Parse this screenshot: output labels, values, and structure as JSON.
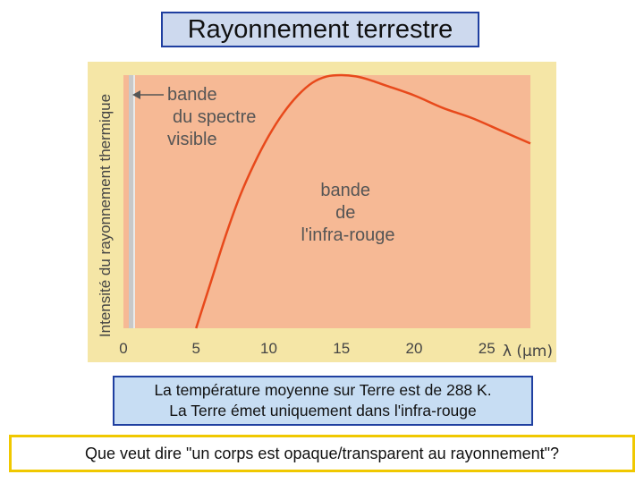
{
  "title": "Rayonnement terrestre",
  "info": {
    "line1": "La température moyenne sur Terre est de 288 K.",
    "line2": "La Terre émet uniquement dans l'infra-rouge"
  },
  "question": "Que veut dire \"un corps est opaque/transparent au rayonnement\"?",
  "chart_data": {
    "type": "line",
    "title": "",
    "xlabel": "λ (µm)",
    "ylabel": "Intensité du rayonnement thermique",
    "xlim": [
      0,
      28
    ],
    "ylim": [
      0,
      1
    ],
    "x_ticks": [
      0,
      5,
      10,
      15,
      20,
      25
    ],
    "series": [
      {
        "x": [
          5,
          6,
          7,
          8,
          9,
          10,
          11,
          12,
          13,
          14,
          15,
          16,
          17,
          18,
          20,
          22,
          24,
          26,
          28
        ],
        "values": [
          0.0,
          0.18,
          0.36,
          0.52,
          0.65,
          0.76,
          0.85,
          0.92,
          0.97,
          0.995,
          1.0,
          0.995,
          0.98,
          0.96,
          0.92,
          0.87,
          0.83,
          0.78,
          0.73
        ]
      }
    ],
    "annotations": {
      "visible_band": [
        "bande",
        "du spectre",
        "visible"
      ],
      "ir_band": [
        "bande",
        "de",
        "l'infra-rouge"
      ]
    },
    "colors": {
      "curve": "#e8491b",
      "ir_band_fill": "#f6b995",
      "frame_bg": "#f5e6a6",
      "visible_band": "#c8c8c8",
      "axis_text": "#444444"
    }
  }
}
